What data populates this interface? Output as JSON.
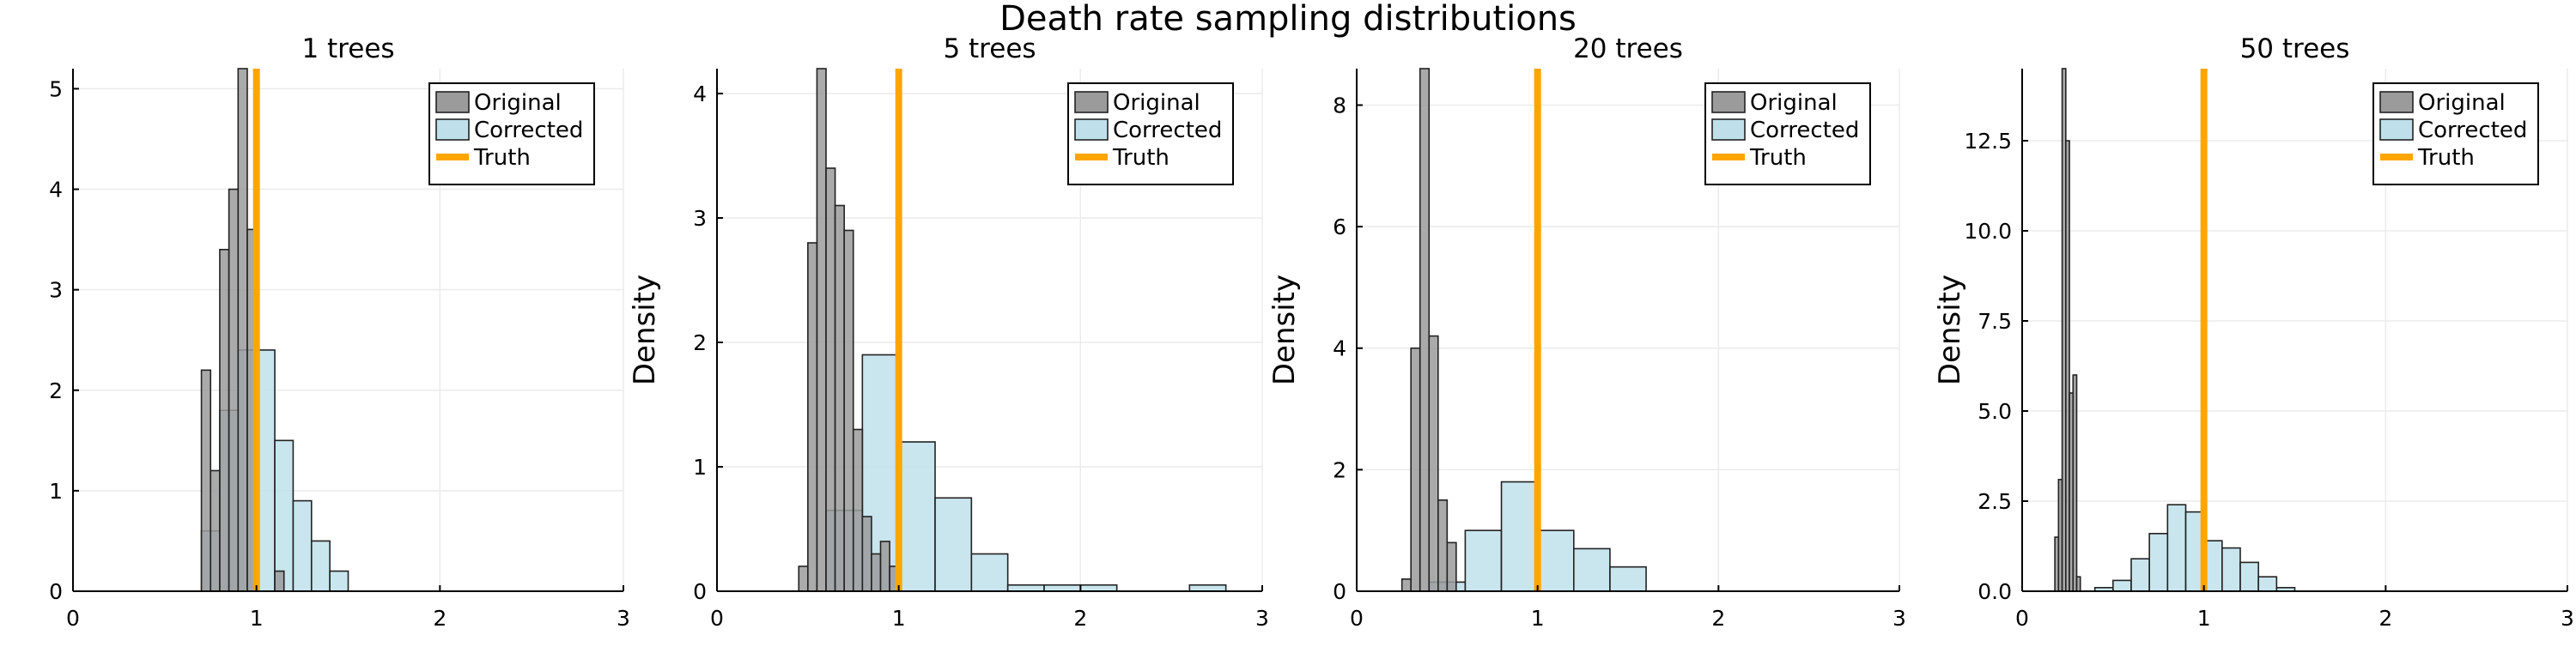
{
  "figure": {
    "title": "Death rate sampling distributions"
  },
  "colors": {
    "original": "#9b9b9b",
    "corrected": "#bfe0ea",
    "truth": "#ffa500",
    "bar_edge": "#222222"
  },
  "chart_data": [
    {
      "type": "bar",
      "title": "1 trees",
      "ylabel": "",
      "xlim": [
        0,
        3
      ],
      "ylim": [
        0,
        5.2
      ],
      "xticks": [
        0,
        1,
        2,
        3
      ],
      "xtick_labels": [
        "0",
        "1",
        "2",
        "3"
      ],
      "yticks": [
        0,
        1,
        2,
        3,
        4,
        5
      ],
      "ytick_labels": [
        "0",
        "1",
        "2",
        "3",
        "4",
        "5"
      ],
      "grid": true,
      "legend": {
        "position": "top-right",
        "entries": [
          "Original",
          "Corrected",
          "Truth"
        ]
      },
      "truth": 1.0,
      "series": [
        {
          "name": "Corrected",
          "bin_width": 0.1,
          "bins": [
            [
              0.7,
              0.6
            ],
            [
              0.8,
              1.8
            ],
            [
              0.9,
              2.4
            ],
            [
              1.0,
              2.4
            ],
            [
              1.1,
              1.5
            ],
            [
              1.2,
              0.9
            ],
            [
              1.3,
              0.5
            ],
            [
              1.4,
              0.2
            ]
          ]
        },
        {
          "name": "Original",
          "bin_width": 0.05,
          "bins": [
            [
              0.7,
              2.2
            ],
            [
              0.75,
              1.2
            ],
            [
              0.8,
              3.4
            ],
            [
              0.85,
              4.0
            ],
            [
              0.9,
              5.2
            ],
            [
              0.95,
              3.6
            ],
            [
              1.1,
              0.2
            ]
          ]
        }
      ]
    },
    {
      "type": "bar",
      "title": "5 trees",
      "ylabel": "Density",
      "xlim": [
        0,
        3
      ],
      "ylim": [
        0,
        4.2
      ],
      "xticks": [
        0,
        1,
        2,
        3
      ],
      "xtick_labels": [
        "0",
        "1",
        "2",
        "3"
      ],
      "yticks": [
        0,
        1,
        2,
        3,
        4
      ],
      "ytick_labels": [
        "0",
        "1",
        "2",
        "3",
        "4"
      ],
      "grid": true,
      "legend": {
        "position": "top-right",
        "entries": [
          "Original",
          "Corrected",
          "Truth"
        ]
      },
      "truth": 1.0,
      "series": [
        {
          "name": "Corrected",
          "bin_width": 0.2,
          "bins": [
            [
              0.6,
              0.65
            ],
            [
              0.8,
              1.9
            ],
            [
              1.0,
              1.2
            ],
            [
              1.2,
              0.75
            ],
            [
              1.4,
              0.3
            ],
            [
              1.6,
              0.05
            ],
            [
              1.8,
              0.05
            ],
            [
              2.0,
              0.05
            ],
            [
              2.6,
              0.05
            ]
          ]
        },
        {
          "name": "Original",
          "bin_width": 0.05,
          "bins": [
            [
              0.45,
              0.2
            ],
            [
              0.5,
              2.8
            ],
            [
              0.55,
              4.2
            ],
            [
              0.6,
              3.4
            ],
            [
              0.65,
              3.1
            ],
            [
              0.7,
              2.9
            ],
            [
              0.75,
              1.3
            ],
            [
              0.8,
              0.6
            ],
            [
              0.85,
              0.3
            ],
            [
              0.9,
              0.4
            ],
            [
              0.95,
              0.2
            ]
          ]
        }
      ]
    },
    {
      "type": "bar",
      "title": "20 trees",
      "ylabel": "Density",
      "xlim": [
        0,
        3
      ],
      "ylim": [
        0,
        8.6
      ],
      "xticks": [
        0,
        1,
        2,
        3
      ],
      "xtick_labels": [
        "0",
        "1",
        "2",
        "3"
      ],
      "yticks": [
        0,
        2,
        4,
        6,
        8
      ],
      "ytick_labels": [
        "0",
        "2",
        "4",
        "6",
        "8"
      ],
      "grid": true,
      "legend": {
        "position": "top-right",
        "entries": [
          "Original",
          "Corrected",
          "Truth"
        ]
      },
      "truth": 1.0,
      "series": [
        {
          "name": "Corrected",
          "bin_width": 0.2,
          "bins": [
            [
              0.4,
              0.15
            ],
            [
              0.6,
              1.0
            ],
            [
              0.8,
              1.8
            ],
            [
              1.0,
              1.0
            ],
            [
              1.2,
              0.7
            ],
            [
              1.4,
              0.4
            ]
          ]
        },
        {
          "name": "Original",
          "bin_width": 0.05,
          "bins": [
            [
              0.25,
              0.2
            ],
            [
              0.3,
              4.0
            ],
            [
              0.35,
              8.6
            ],
            [
              0.4,
              4.2
            ],
            [
              0.45,
              1.5
            ],
            [
              0.5,
              0.8
            ]
          ]
        }
      ]
    },
    {
      "type": "bar",
      "title": "50 trees",
      "ylabel": "Density",
      "xlim": [
        0,
        3
      ],
      "ylim": [
        0,
        14.5
      ],
      "xticks": [
        0,
        1,
        2,
        3
      ],
      "xtick_labels": [
        "0",
        "1",
        "2",
        "3"
      ],
      "yticks": [
        0,
        2.5,
        5,
        7.5,
        10,
        12.5
      ],
      "ytick_labels": [
        "0.0",
        "2.5",
        "5.0",
        "7.5",
        "10.0",
        "12.5"
      ],
      "grid": true,
      "legend": {
        "position": "top-right",
        "entries": [
          "Original",
          "Corrected",
          "Truth"
        ]
      },
      "truth": 1.0,
      "series": [
        {
          "name": "Corrected",
          "bin_width": 0.1,
          "bins": [
            [
              0.4,
              0.1
            ],
            [
              0.5,
              0.3
            ],
            [
              0.6,
              0.9
            ],
            [
              0.7,
              1.6
            ],
            [
              0.8,
              2.4
            ],
            [
              0.9,
              2.2
            ],
            [
              1.0,
              1.4
            ],
            [
              1.1,
              1.2
            ],
            [
              1.2,
              0.8
            ],
            [
              1.3,
              0.4
            ],
            [
              1.4,
              0.1
            ]
          ]
        },
        {
          "name": "Original",
          "bin_width": 0.02,
          "bins": [
            [
              0.18,
              1.5
            ],
            [
              0.2,
              3.1
            ],
            [
              0.22,
              14.5
            ],
            [
              0.24,
              12.5
            ],
            [
              0.26,
              5.5
            ],
            [
              0.28,
              6.0
            ],
            [
              0.3,
              0.4
            ]
          ]
        }
      ]
    }
  ]
}
